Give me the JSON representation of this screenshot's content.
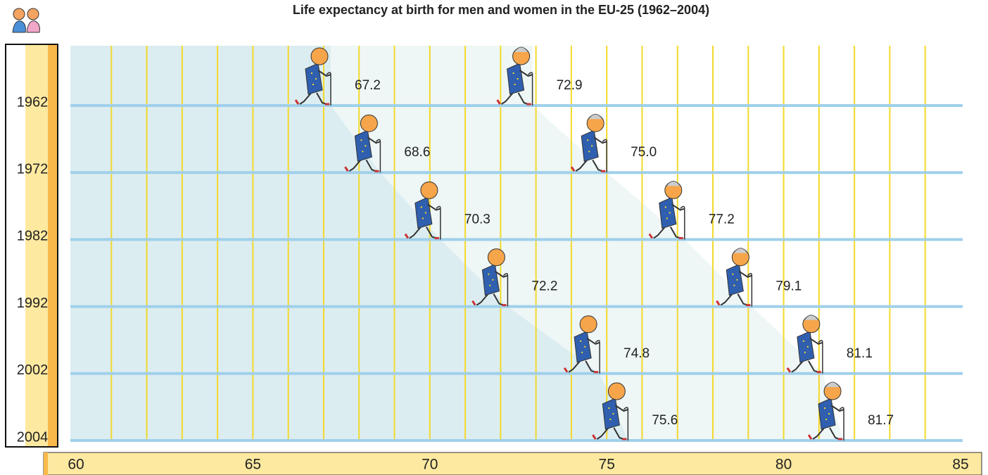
{
  "chart_data": {
    "type": "figure-dot",
    "title": "Life expectancy at birth for men and women in the EU-25 (1962–2004)",
    "categories": [
      "1962",
      "1972",
      "1982",
      "1992",
      "2002",
      "2004"
    ],
    "series": [
      {
        "color": "#2f5fae",
        "values": [
          67.2,
          68.6,
          70.3,
          72.2,
          74.8,
          75.6
        ],
        "value_labels": [
          "67.2",
          "68.6",
          "70.3",
          "72.2",
          "74.8",
          "75.6"
        ],
        "area_color": "#dcedf1"
      },
      {
        "color": "#2f5fae",
        "values": [
          72.9,
          75.0,
          77.2,
          79.1,
          81.1,
          81.7
        ],
        "value_labels": [
          "72.9",
          "75.0",
          "77.2",
          "79.1",
          "81.1",
          "81.7"
        ],
        "area_color": "#eef6f6"
      }
    ],
    "xlim": [
      60,
      85
    ],
    "xticks": [
      60,
      65,
      70,
      75,
      80,
      85
    ],
    "xminorticks": [
      61,
      62,
      63,
      64,
      65,
      66,
      67,
      68,
      69,
      70,
      71,
      72,
      73,
      74,
      75,
      76,
      77,
      78,
      79,
      80,
      81,
      82,
      83,
      84
    ],
    "grid": true
  }
}
